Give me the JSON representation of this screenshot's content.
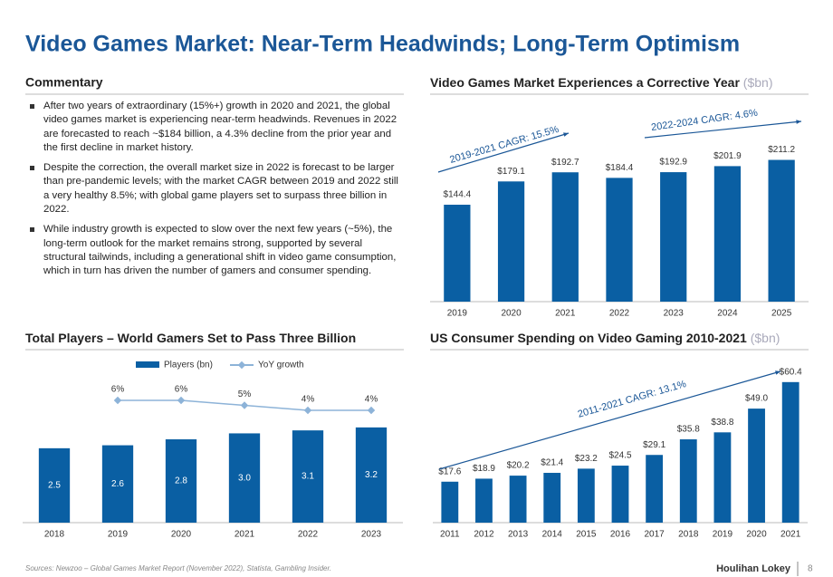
{
  "title": "Video Games Market: Near-Term Headwinds; Long-Term Optimism",
  "commentary": {
    "heading": "Commentary",
    "bullets": [
      "After two years of extraordinary (15%+) growth in 2020 and 2021, the global video games market is experiencing near-term headwinds. Revenues in 2022 are forecasted to reach ~$184 billion, a 4.3% decline from the prior year and the first decline in market history.",
      "Despite the correction, the overall market size in 2022 is forecast to be larger than pre-pandemic levels; with the market CAGR between 2019 and 2022 still a very healthy 8.5%; with global game players set to surpass three billion in 2022.",
      "While industry growth is expected to slow over the next few years (~5%), the long-term outlook for the market remains strong, supported by several structural tailwinds, including a generational shift in video game consumption, which in turn has driven the number of gamers and consumer spending."
    ]
  },
  "chart_data": [
    {
      "type": "bar",
      "title": "Video Games Market Experiences a Corrective Year",
      "subtitle": "($bn)",
      "categories": [
        "2019",
        "2020",
        "2021",
        "2022",
        "2023",
        "2024",
        "2025"
      ],
      "values": [
        144.4,
        179.1,
        192.7,
        184.4,
        192.9,
        201.9,
        211.2
      ],
      "value_labels": [
        "$144.4",
        "$179.1",
        "$192.7",
        "$184.4",
        "$192.9",
        "$201.9",
        "$211.2"
      ],
      "color": "#0a5fa3",
      "ylim": [
        0,
        220
      ],
      "annotations": [
        "2019-2021 CAGR: 15.5%",
        "2022-2024 CAGR: 4.6%"
      ]
    },
    {
      "type": "combo",
      "title": "Total Players – World Gamers Set to Pass Three Billion",
      "categories": [
        "2018",
        "2019",
        "2020",
        "2021",
        "2022",
        "2023"
      ],
      "series": [
        {
          "name": "Players (bn)",
          "type": "bar",
          "color": "#0a5fa3",
          "values": [
            2.5,
            2.6,
            2.8,
            3.0,
            3.1,
            3.2
          ],
          "value_labels": [
            "2.5",
            "2.6",
            "2.8",
            "3.0",
            "3.1",
            "3.2"
          ]
        },
        {
          "name": "YoY growth",
          "type": "line",
          "axis": "y2",
          "color": "#8db3d8",
          "values": [
            null,
            6,
            6,
            5,
            4,
            4
          ],
          "value_labels": [
            null,
            "6%",
            "6%",
            "5%",
            "4%",
            "4%"
          ]
        }
      ],
      "ylim": [
        0,
        3.5
      ],
      "y2lim": [
        0,
        10
      ],
      "legend": "top"
    },
    {
      "type": "bar",
      "title": "US Consumer Spending on Video Gaming 2010-2021",
      "subtitle": "($bn)",
      "categories": [
        "2011",
        "2012",
        "2013",
        "2014",
        "2015",
        "2016",
        "2017",
        "2018",
        "2019",
        "2020",
        "2021"
      ],
      "values": [
        17.6,
        18.9,
        20.2,
        21.4,
        23.2,
        24.5,
        29.1,
        35.8,
        38.8,
        49.0,
        60.4
      ],
      "value_labels": [
        "$17.6",
        "$18.9",
        "$20.2",
        "$21.4",
        "$23.2",
        "$24.5",
        "$29.1",
        "$35.8",
        "$38.8",
        "$49.0",
        "$60.4"
      ],
      "color": "#0a5fa3",
      "ylim": [
        0,
        65
      ],
      "annotations": [
        "2011-2021 CAGR: 13.1%"
      ]
    }
  ],
  "footer": {
    "sources": "Sources: Newzoo – Global Games Market Report (November 2022), Statista, Gambling Insider.",
    "logo": "Houlihan Lokey",
    "page": 8
  }
}
